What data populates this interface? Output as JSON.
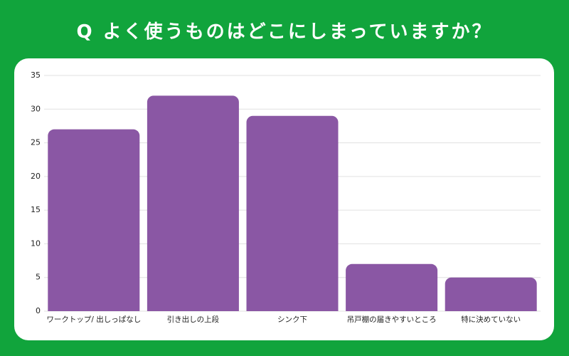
{
  "colors": {
    "background": "#11a43c",
    "card": "#ffffff",
    "bar": "#8a57a4",
    "grid": "#e0e0e0",
    "axis_text": "#222222",
    "title_text": "#ffffff"
  },
  "chart_data": {
    "type": "bar",
    "title": "Q よく使うものはどこにしまっていますか？",
    "categories": [
      "ワークトップ/ 出しっぱなし",
      "引き出しの上段",
      "シンク下",
      "吊戸棚の届きやすいところ",
      "特に決めていない"
    ],
    "values": [
      27,
      32,
      29,
      7,
      5
    ],
    "ylim": [
      0,
      35
    ],
    "yticks": [
      0,
      5,
      10,
      15,
      20,
      25,
      30,
      35
    ],
    "grid": true
  }
}
